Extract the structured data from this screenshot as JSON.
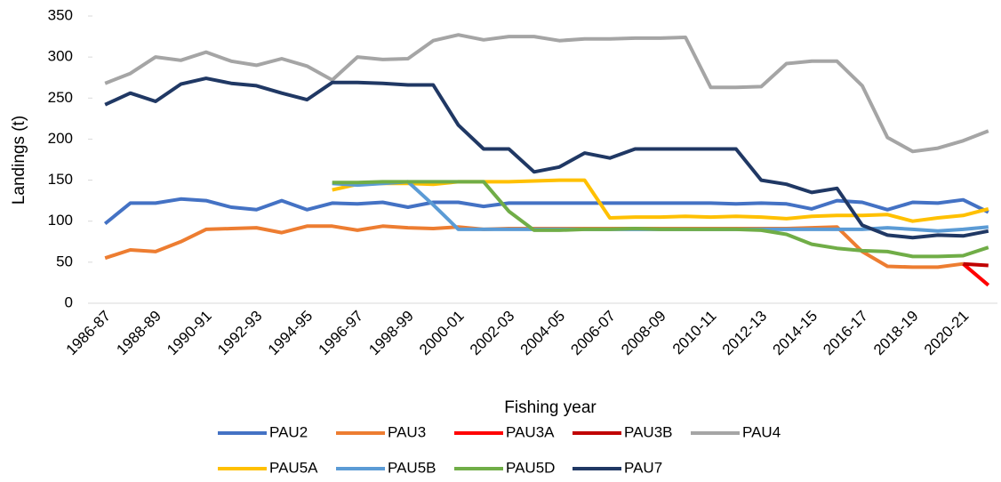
{
  "chart_data": {
    "type": "line",
    "x_label": "Fishing year",
    "y_label": "Landings (t)",
    "categories": [
      "1986-87",
      null,
      "1988-89",
      null,
      "1990-91",
      null,
      "1992-93",
      null,
      "1994-95",
      null,
      "1996-97",
      null,
      "1998-99",
      null,
      "2000-01",
      null,
      "2002-03",
      null,
      "2004-05",
      null,
      "2006-07",
      null,
      "2008-09",
      null,
      "2010-11",
      null,
      "2012-13",
      null,
      "2014-15",
      null,
      "2016-17",
      null,
      "2018-19",
      null,
      "2020-21",
      null
    ],
    "ylim": [
      0,
      350
    ],
    "yticks": [
      0,
      50,
      100,
      150,
      200,
      250,
      300,
      350
    ],
    "series": [
      {
        "name": "PAU2",
        "color": "#4472c4",
        "values": [
          97,
          122,
          122,
          127,
          125,
          117,
          114,
          125,
          114,
          122,
          121,
          123,
          117,
          123,
          123,
          118,
          122,
          122,
          122,
          122,
          122,
          122,
          122,
          122,
          122,
          121,
          122,
          121,
          115,
          125,
          123,
          114,
          123,
          122,
          126,
          111
        ]
      },
      {
        "name": "PAU3",
        "color": "#ed7d31",
        "values": [
          55,
          65,
          63,
          75,
          90,
          91,
          92,
          86,
          94,
          94,
          89,
          94,
          92,
          91,
          93,
          90,
          91,
          91,
          91,
          91,
          91,
          91,
          91,
          91,
          91,
          91,
          91,
          91,
          92,
          93,
          63,
          45,
          44,
          44,
          48,
          null
        ]
      },
      {
        "name": "PAU3A",
        "color": "#ff0000",
        "values": [
          null,
          null,
          null,
          null,
          null,
          null,
          null,
          null,
          null,
          null,
          null,
          null,
          null,
          null,
          null,
          null,
          null,
          null,
          null,
          null,
          null,
          null,
          null,
          null,
          null,
          null,
          null,
          null,
          null,
          null,
          null,
          null,
          null,
          null,
          48,
          22
        ]
      },
      {
        "name": "PAU3B",
        "color": "#c00000",
        "values": [
          null,
          null,
          null,
          null,
          null,
          null,
          null,
          null,
          null,
          null,
          null,
          null,
          null,
          null,
          null,
          null,
          null,
          null,
          null,
          null,
          null,
          null,
          null,
          null,
          null,
          null,
          null,
          null,
          null,
          null,
          null,
          null,
          null,
          null,
          48,
          46
        ]
      },
      {
        "name": "PAU4",
        "color": "#a5a5a5",
        "values": [
          268,
          280,
          300,
          296,
          306,
          295,
          290,
          298,
          289,
          272,
          300,
          297,
          298,
          320,
          327,
          321,
          325,
          325,
          320,
          322,
          322,
          323,
          323,
          324,
          263,
          263,
          264,
          292,
          295,
          295,
          265,
          202,
          185,
          189,
          198,
          210
        ]
      },
      {
        "name": "PAU5A",
        "color": "#ffc000",
        "values": [
          null,
          null,
          null,
          null,
          null,
          null,
          null,
          null,
          null,
          138,
          145,
          146,
          146,
          145,
          148,
          148,
          148,
          149,
          150,
          150,
          104,
          105,
          105,
          106,
          105,
          106,
          105,
          103,
          106,
          107,
          107,
          108,
          100,
          104,
          107,
          115
        ]
      },
      {
        "name": "PAU5B",
        "color": "#5b9bd5",
        "values": [
          null,
          null,
          null,
          null,
          null,
          null,
          null,
          null,
          null,
          146,
          144,
          146,
          148,
          120,
          90,
          90,
          90,
          90,
          90,
          90,
          90,
          90,
          90,
          90,
          90,
          90,
          90,
          90,
          90,
          90,
          90,
          92,
          90,
          88,
          90,
          93
        ]
      },
      {
        "name": "PAU5D",
        "color": "#70ad47",
        "values": [
          null,
          null,
          null,
          null,
          null,
          null,
          null,
          null,
          null,
          147,
          147,
          148,
          148,
          148,
          148,
          148,
          112,
          89,
          89,
          90,
          90,
          91,
          90,
          90,
          90,
          90,
          89,
          84,
          72,
          67,
          64,
          63,
          57,
          57,
          58,
          68
        ]
      },
      {
        "name": "PAU7",
        "color": "#203864",
        "values": [
          242,
          256,
          246,
          267,
          274,
          268,
          265,
          256,
          248,
          269,
          269,
          268,
          266,
          266,
          217,
          188,
          188,
          160,
          166,
          183,
          177,
          188,
          188,
          188,
          188,
          188,
          150,
          145,
          135,
          140,
          95,
          83,
          80,
          83,
          82,
          88
        ]
      }
    ]
  }
}
